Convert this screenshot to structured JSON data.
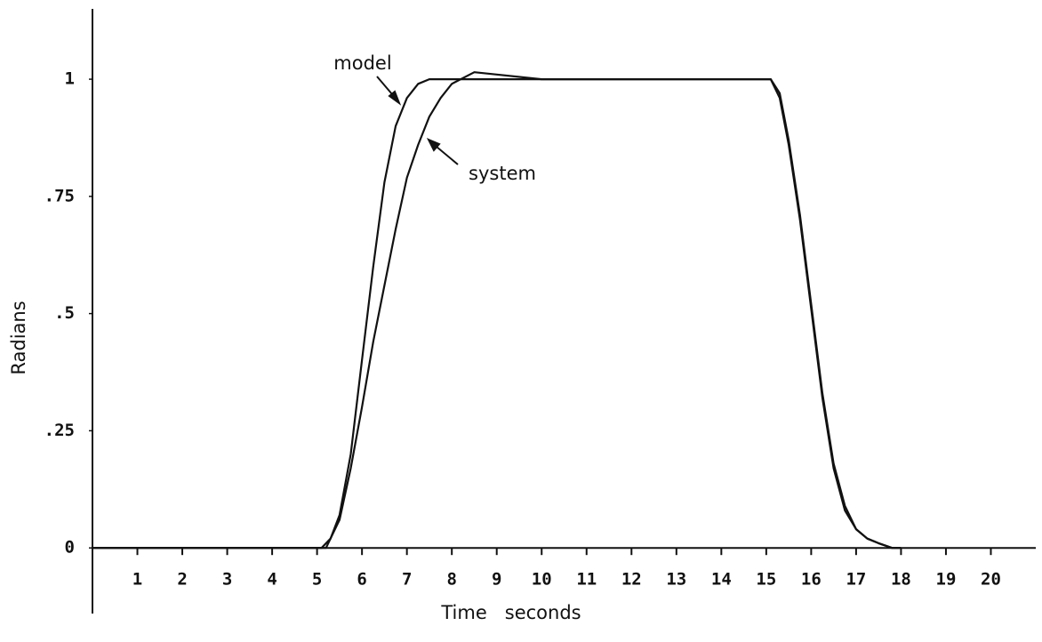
{
  "chart_data": {
    "type": "line",
    "xlabel": "Time   seconds",
    "ylabel": "Radians",
    "annotations": [
      "model",
      "system"
    ],
    "xlim": [
      0,
      21
    ],
    "ylim": [
      -0.14,
      1.15
    ],
    "xticks": [
      1,
      2,
      3,
      4,
      5,
      6,
      7,
      8,
      9,
      10,
      11,
      12,
      13,
      14,
      15,
      16,
      17,
      18,
      19,
      20
    ],
    "yticks": [
      0,
      {
        "value": 0.25,
        "label": ".25"
      },
      {
        "value": 0.5,
        "label": ".5"
      },
      {
        "value": 0.75,
        "label": ".75"
      },
      1
    ],
    "grid": false,
    "series": [
      {
        "color": "#111111",
        "x": [
          0,
          5.1,
          5.3,
          5.5,
          5.75,
          6,
          6.25,
          6.5,
          6.75,
          7,
          7.25,
          7.5,
          8,
          15,
          15.1,
          15.3,
          15.5,
          15.75,
          16,
          16.25,
          16.5,
          16.75,
          17,
          17.25,
          17.5,
          17.8,
          18
        ],
        "values": [
          0,
          0,
          0.02,
          0.07,
          0.2,
          0.4,
          0.6,
          0.78,
          0.9,
          0.96,
          0.99,
          1.0,
          1.0,
          1.0,
          1.0,
          0.96,
          0.86,
          0.7,
          0.51,
          0.32,
          0.17,
          0.08,
          0.04,
          0.02,
          0.01,
          0,
          0
        ]
      },
      {
        "color": "#111111",
        "x": [
          0,
          5.2,
          5.5,
          5.75,
          6,
          6.25,
          6.5,
          6.75,
          7,
          7.25,
          7.5,
          7.75,
          8,
          8.5,
          9,
          10,
          15,
          15.1,
          15.3,
          15.5,
          15.75,
          16,
          16.25,
          16.5,
          16.75,
          17,
          17.25,
          17.5,
          17.8,
          18
        ],
        "values": [
          0,
          0,
          0.06,
          0.17,
          0.3,
          0.44,
          0.56,
          0.68,
          0.79,
          0.86,
          0.92,
          0.96,
          0.99,
          1.015,
          1.01,
          1.0,
          1.0,
          1.0,
          0.97,
          0.87,
          0.71,
          0.52,
          0.33,
          0.18,
          0.09,
          0.04,
          0.02,
          0.01,
          0,
          0
        ]
      }
    ]
  }
}
